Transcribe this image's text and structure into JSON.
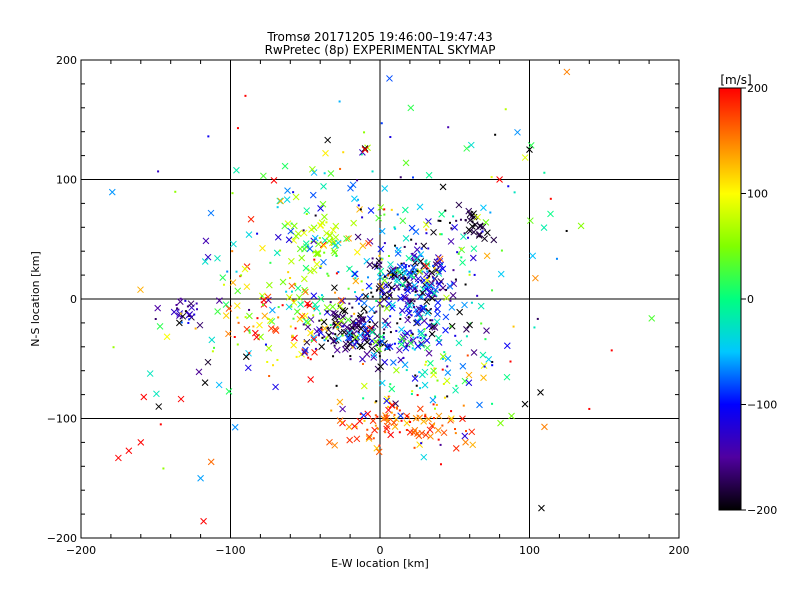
{
  "chart_data": {
    "type": "scatter",
    "title": "Tromsø 20171205 19:46:00–19:47:43",
    "subtitle": "RwPretec (8p) EXPERIMENTAL SKYMAP",
    "xlabel": "E-W location [km]",
    "ylabel": "N-S location [km]",
    "xlim": [
      -200,
      200
    ],
    "ylim": [
      -200,
      200
    ],
    "xticks": [
      "−200",
      "−100",
      "0",
      "100",
      "200"
    ],
    "yticks": [
      "−200",
      "−100",
      "0",
      "100",
      "200"
    ],
    "grid": true,
    "colorbar": {
      "label": "[m/s]",
      "range": [
        -200,
        200
      ],
      "ticks": [
        "200",
        "100",
        "0",
        "−100",
        "−200"
      ],
      "colors": [
        "#000000",
        "#5000a0",
        "#0000ff",
        "#00c8ff",
        "#00ff80",
        "#80ff00",
        "#ffff00",
        "#ff8000",
        "#ff0000"
      ]
    },
    "clusters": [
      {
        "cx": 20,
        "cy": 15,
        "sx": 14,
        "sy": 15,
        "n": 230,
        "vmean": -140,
        "vsd": 55
      },
      {
        "cx": -20,
        "cy": -25,
        "sx": 14,
        "sy": 12,
        "n": 150,
        "vmean": -170,
        "vsd": 40
      },
      {
        "cx": 22,
        "cy": -25,
        "sx": 15,
        "sy": 12,
        "n": 70,
        "vmean": -110,
        "vsd": 60
      },
      {
        "cx": 15,
        "cy": -105,
        "sx": 22,
        "sy": 10,
        "n": 100,
        "vmean": 170,
        "vsd": 30
      },
      {
        "cx": -40,
        "cy": 50,
        "sx": 12,
        "sy": 10,
        "n": 45,
        "vmean": 60,
        "vsd": 30
      },
      {
        "cx": -60,
        "cy": -15,
        "sx": 22,
        "sy": 20,
        "n": 110,
        "vmean": 120,
        "vsd": 70
      },
      {
        "cx": -130,
        "cy": -12,
        "sx": 6,
        "sy": 6,
        "n": 30,
        "vmean": -150,
        "vsd": 30
      },
      {
        "cx": 60,
        "cy": 65,
        "sx": 10,
        "sy": 9,
        "n": 35,
        "vmean": -190,
        "vsd": 15
      },
      {
        "cx": -10,
        "cy": 40,
        "sx": 45,
        "sy": 45,
        "n": 180,
        "vmean": -20,
        "vsd": 90
      },
      {
        "cx": -20,
        "cy": 0,
        "sx": 75,
        "sy": 65,
        "n": 160,
        "vmean": 0,
        "vsd": 120
      },
      {
        "cx": 30,
        "cy": -60,
        "sx": 35,
        "sy": 25,
        "n": 80,
        "vmean": -30,
        "vsd": 100
      }
    ],
    "points": [
      {
        "x": 125,
        "y": 190,
        "v": 150,
        "m": "x"
      },
      {
        "x": 100,
        "y": 125,
        "v": -200,
        "m": "x"
      },
      {
        "x": -35,
        "y": 133,
        "v": -200,
        "m": "x"
      },
      {
        "x": -10,
        "y": 126,
        "v": -200,
        "m": "x"
      },
      {
        "x": -115,
        "y": 35,
        "v": -130,
        "m": "x"
      },
      {
        "x": -175,
        "y": -133,
        "v": 200,
        "m": "x"
      },
      {
        "x": -168,
        "y": -127,
        "v": 200,
        "m": "x"
      },
      {
        "x": -160,
        "y": -120,
        "v": 200,
        "m": "x"
      },
      {
        "x": -158,
        "y": -82,
        "v": 200,
        "m": "x"
      },
      {
        "x": -120,
        "y": -150,
        "v": -60,
        "m": "x"
      },
      {
        "x": -118,
        "y": -186,
        "v": 200,
        "m": "x"
      },
      {
        "x": 108,
        "y": -175,
        "v": -200,
        "m": "x"
      },
      {
        "x": 110,
        "y": -107,
        "v": 150,
        "m": "x"
      },
      {
        "x": 97,
        "y": -88,
        "v": -200,
        "m": "x"
      },
      {
        "x": -148,
        "y": -90,
        "v": -200,
        "m": "x"
      },
      {
        "x": -117,
        "y": -70,
        "v": -200,
        "m": "x"
      },
      {
        "x": -78,
        "y": 103,
        "v": 30,
        "m": "x"
      },
      {
        "x": -10,
        "y": 125,
        "v": 200,
        "m": "x"
      },
      {
        "x": 58,
        "y": 126,
        "v": 20,
        "m": "x"
      },
      {
        "x": 80,
        "y": 100,
        "v": 200,
        "m": "x"
      },
      {
        "x": -90,
        "y": 170,
        "v": 200,
        "m": "."
      },
      {
        "x": -95,
        "y": 143,
        "v": 200,
        "m": "."
      },
      {
        "x": 140,
        "y": -92,
        "v": 200,
        "m": "."
      },
      {
        "x": 155,
        "y": -43,
        "v": 200,
        "m": "."
      }
    ]
  }
}
